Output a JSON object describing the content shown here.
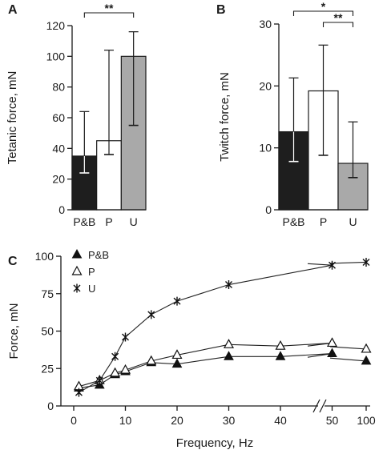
{
  "chart_data": [
    {
      "panel": "A",
      "type": "bar",
      "ylabel": "Tetanic force, mN",
      "ylim": [
        0,
        120
      ],
      "yticks": [
        0,
        20,
        40,
        60,
        80,
        100,
        120
      ],
      "categories": [
        "P&B",
        "P",
        "U"
      ],
      "values": [
        35,
        45,
        100
      ],
      "error_high": [
        64,
        104,
        116
      ],
      "error_low": [
        24,
        36,
        55
      ],
      "bar_colors": [
        "#1e1e1e",
        "#ffffff",
        "#a9a9a9"
      ],
      "significance": [
        {
          "from": "P&B",
          "to": "U",
          "label": "**"
        }
      ]
    },
    {
      "panel": "B",
      "type": "bar",
      "ylabel": "Twitch force, mN",
      "ylim": [
        0,
        30
      ],
      "yticks": [
        0,
        10,
        20,
        30
      ],
      "categories": [
        "P&B",
        "P",
        "U"
      ],
      "values": [
        12.6,
        19.2,
        7.5
      ],
      "error_high": [
        21.3,
        26.6,
        14.2
      ],
      "error_low": [
        7.8,
        8.8,
        5.2
      ],
      "bar_colors": [
        "#1e1e1e",
        "#ffffff",
        "#a9a9a9"
      ],
      "significance": [
        {
          "from": "P&B",
          "to": "U",
          "label": "*"
        },
        {
          "from": "P",
          "to": "U",
          "label": "**"
        }
      ]
    },
    {
      "panel": "C",
      "type": "line",
      "xlabel": "Frequency, Hz",
      "ylabel": "Force, mN",
      "ylim": [
        0,
        100
      ],
      "yticks": [
        0,
        25,
        50,
        75,
        100
      ],
      "xticks": [
        0,
        10,
        20,
        30,
        40,
        50,
        100
      ],
      "axis_break": "between 50 and 100",
      "x": [
        1,
        5,
        8,
        10,
        15,
        20,
        30,
        40,
        50,
        100
      ],
      "legend_position": "top-left",
      "series": [
        {
          "name": "P&B",
          "marker": "filled-triangle",
          "values": [
            12,
            14,
            21,
            23,
            29,
            28,
            33,
            33,
            35,
            30
          ]
        },
        {
          "name": "P",
          "marker": "open-triangle",
          "values": [
            13,
            17,
            22,
            24,
            30,
            34,
            41,
            40,
            42,
            38
          ]
        },
        {
          "name": "U",
          "marker": "asterisk",
          "values": [
            9,
            17,
            33,
            46,
            61,
            70,
            81,
            null,
            94,
            96
          ]
        }
      ]
    }
  ]
}
